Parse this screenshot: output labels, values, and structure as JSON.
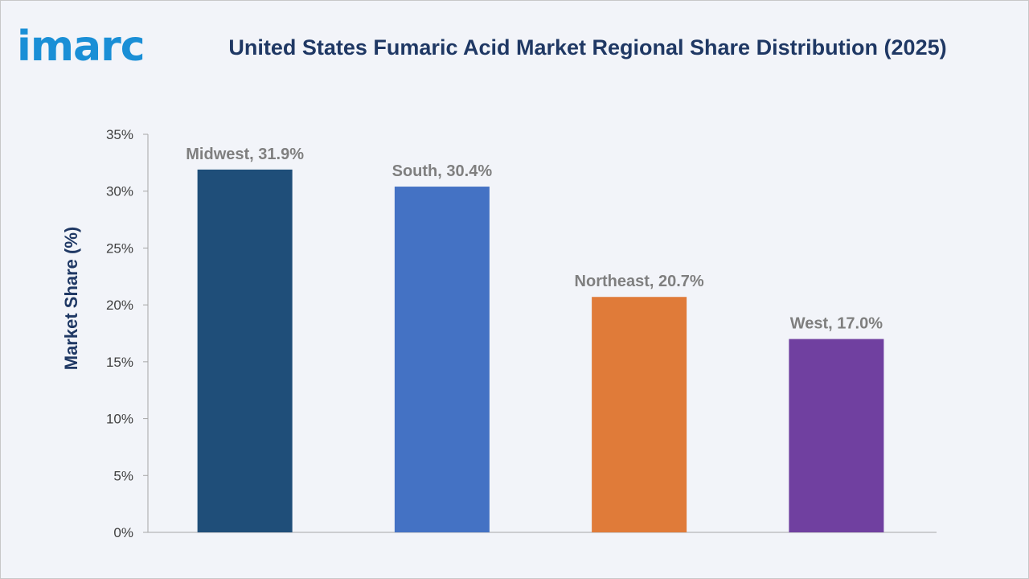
{
  "brand": {
    "logo_text": "imarc",
    "logo_color": "#1a8fd6"
  },
  "chart_data": {
    "type": "bar",
    "title": "United States Fumaric Acid Market Regional Share Distribution (2025)",
    "xlabel": "",
    "ylabel": "Market Share (%)",
    "ylim": [
      0,
      35
    ],
    "yticks": [
      0,
      5,
      10,
      15,
      20,
      25,
      30,
      35
    ],
    "ytick_labels": [
      "0%",
      "5%",
      "10%",
      "15%",
      "20%",
      "25%",
      "30%",
      "35%"
    ],
    "categories": [
      "Midwest",
      "South",
      "Northeast",
      "West"
    ],
    "values": [
      31.9,
      30.4,
      20.7,
      17.0
    ],
    "data_labels": [
      "Midwest, 31.9%",
      "South, 30.4%",
      "Northeast, 20.7%",
      "West, 17.0%"
    ],
    "colors": [
      "#1f4e79",
      "#4472c4",
      "#e07b39",
      "#7040a0"
    ],
    "grid": false,
    "legend": "none"
  }
}
